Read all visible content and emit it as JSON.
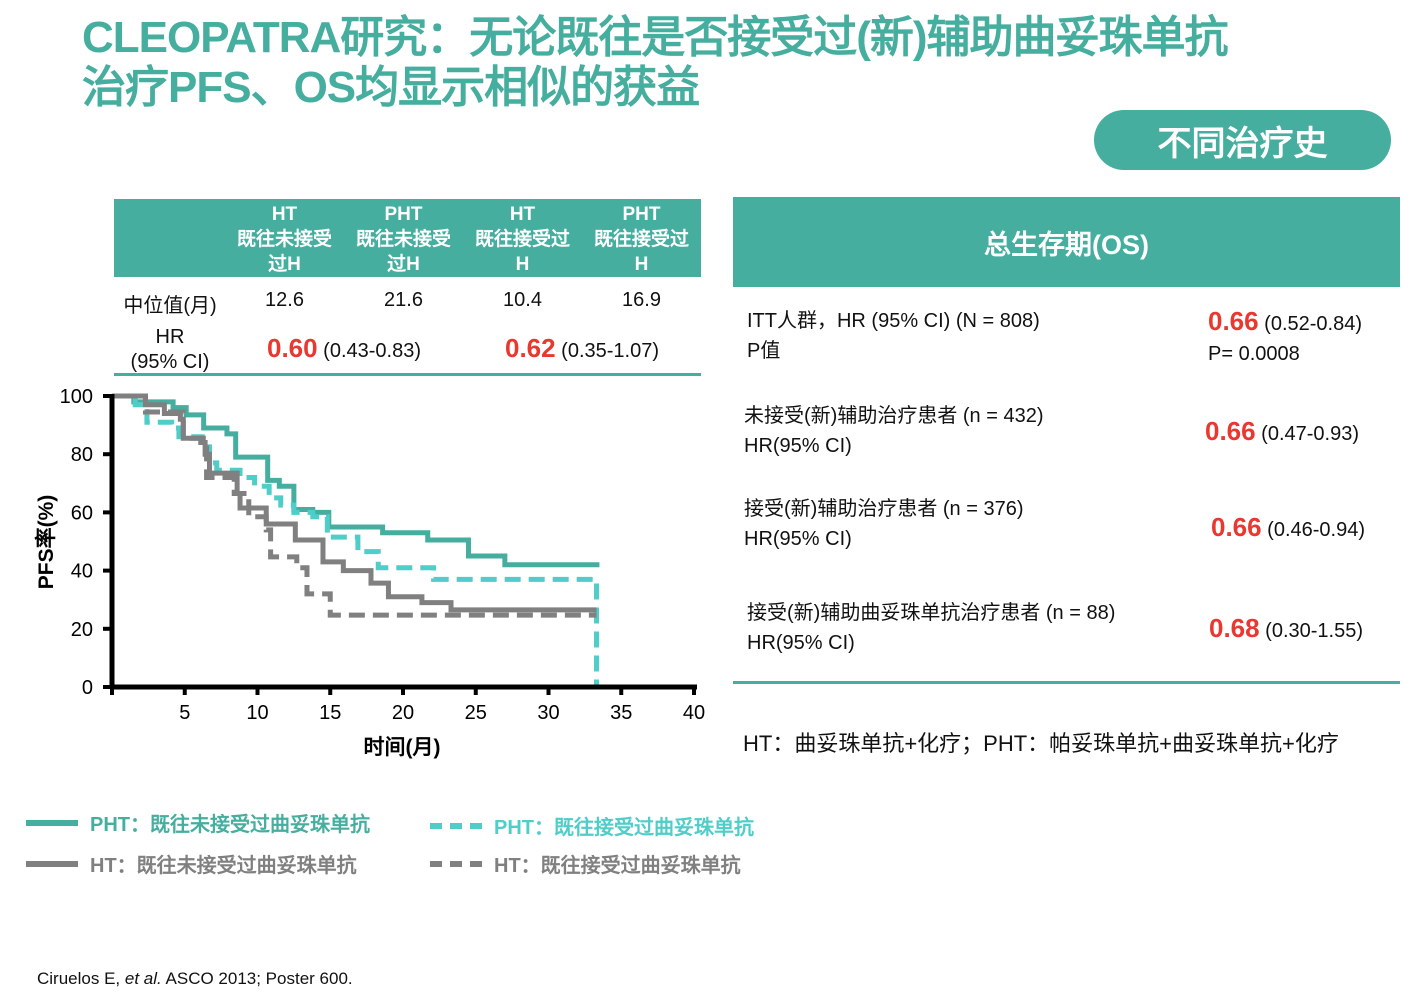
{
  "title": {
    "line1": "CLEOPATRA研究：无论既往是否接受过(新)辅助曲妥珠单抗",
    "line2": "治疗PFS、OS均显示相似的获益"
  },
  "badge": "不同治疗史",
  "pfs_table": {
    "columns": [
      {
        "l1": "HT",
        "l2": "既往未接受",
        "l3": "过H"
      },
      {
        "l1": "PHT",
        "l2": "既往未接受",
        "l3": "过H"
      },
      {
        "l1": "HT",
        "l2": "既往接受过",
        "l3": "H"
      },
      {
        "l1": "PHT",
        "l2": "既往接受过",
        "l3": "H"
      }
    ],
    "median_label": "中位值(月)",
    "medians": [
      "12.6",
      "21.6",
      "10.4",
      "16.9"
    ],
    "hr_label_1": "HR",
    "hr_label_2": "(95% CI)",
    "hr": [
      {
        "value": "0.60",
        "ci": "(0.43-0.83)"
      },
      {
        "value": "0.62",
        "ci": "(0.35-1.07)"
      }
    ]
  },
  "os_table": {
    "header": "总生存期(OS)",
    "rows": [
      {
        "l1": "ITT人群，HR (95% CI) (N = 808)",
        "l2": "P值",
        "value": "0.66",
        "ci": "(0.52-0.84)",
        "p": "P= 0.0008"
      },
      {
        "l1": "未接受(新)辅助治疗患者 (n = 432)",
        "l2": "HR(95% CI)",
        "value": "0.66",
        "ci": "(0.47-0.93)"
      },
      {
        "l1": "接受(新)辅助治疗患者 (n = 376)",
        "l2": "HR(95% CI)",
        "value": "0.66",
        "ci": "(0.46-0.94)"
      },
      {
        "l1": "接受(新)辅助曲妥珠单抗治疗患者 (n = 88)",
        "l2": "HR(95% CI)",
        "value": "0.68",
        "ci": "(0.30-1.55)"
      }
    ],
    "footnote": "HT：曲妥珠单抗+化疗；PHT：帕妥珠单抗+曲妥珠单抗+化疗"
  },
  "legend": [
    {
      "label": "PHT：既往未接受过曲妥珠单抗",
      "color": "#45ae9f",
      "dashed": false
    },
    {
      "label": "PHT：既往接受过曲妥珠单抗",
      "color": "#4fcdc9",
      "dashed": true
    },
    {
      "label": "HT：既往未接受过曲妥珠单抗",
      "color": "#808080",
      "dashed": false
    },
    {
      "label": "HT：既往接受过曲妥珠单抗",
      "color": "#808080",
      "dashed": true
    }
  ],
  "citation": {
    "pre": "Ciruelos E, ",
    "em": "et al.",
    "post": " ASCO 2013; Poster 600."
  },
  "chart_data": {
    "type": "line",
    "subtype": "kaplan-meier step",
    "xlabel": "时间(月)",
    "ylabel": "PFS率(%)",
    "xlim": [
      0,
      40
    ],
    "ylim": [
      0,
      100
    ],
    "xticks": [
      5,
      10,
      15,
      20,
      25,
      30,
      35,
      40
    ],
    "yticks": [
      0,
      20,
      40,
      60,
      80,
      100
    ],
    "grid": false,
    "legend_position": "bottom",
    "series": [
      {
        "name": "PHT：既往未接受过曲妥珠单抗",
        "color": "#45ae9f",
        "dashed": false,
        "points": [
          [
            0,
            100
          ],
          [
            1.5,
            98
          ],
          [
            4.2,
            96
          ],
          [
            5.1,
            93.5
          ],
          [
            6.3,
            89
          ],
          [
            7.9,
            87
          ],
          [
            8.5,
            79
          ],
          [
            10.7,
            71
          ],
          [
            11.5,
            69
          ],
          [
            12.5,
            61
          ],
          [
            13.8,
            60
          ],
          [
            14.9,
            55
          ],
          [
            18.6,
            53
          ],
          [
            21.7,
            50.5
          ],
          [
            24.5,
            45
          ],
          [
            27,
            42
          ],
          [
            33.5,
            42
          ]
        ]
      },
      {
        "name": "PHT：既往接受过曲妥珠单抗",
        "color": "#4fcdc9",
        "dashed": true,
        "points": [
          [
            0,
            100
          ],
          [
            1.6,
            97
          ],
          [
            2.4,
            91
          ],
          [
            4.1,
            89
          ],
          [
            4.6,
            86
          ],
          [
            6.2,
            82.5
          ],
          [
            6.7,
            77
          ],
          [
            7.2,
            74.5
          ],
          [
            8.8,
            72
          ],
          [
            9.8,
            69
          ],
          [
            10.8,
            65
          ],
          [
            11.6,
            62.5
          ],
          [
            12.5,
            60
          ],
          [
            13.8,
            58.5
          ],
          [
            14.8,
            51.5
          ],
          [
            16.9,
            46.5
          ],
          [
            18.3,
            41
          ],
          [
            22.1,
            37
          ],
          [
            33.3,
            37
          ],
          [
            33.3,
            0
          ]
        ]
      },
      {
        "name": "HT：既往未接受过曲妥珠单抗",
        "color": "#808080",
        "dashed": false,
        "points": [
          [
            0,
            100
          ],
          [
            2.3,
            97
          ],
          [
            3.6,
            94
          ],
          [
            4.7,
            92
          ],
          [
            4.9,
            85.5
          ],
          [
            6.1,
            84
          ],
          [
            6.4,
            80
          ],
          [
            6.7,
            73.5
          ],
          [
            8.6,
            66.5
          ],
          [
            8.8,
            61.5
          ],
          [
            10.6,
            56
          ],
          [
            12.6,
            50.5
          ],
          [
            14.5,
            43
          ],
          [
            15.9,
            40
          ],
          [
            17.8,
            35.7
          ],
          [
            19,
            31
          ],
          [
            21.3,
            29
          ],
          [
            23.3,
            26.5
          ],
          [
            33.3,
            26.5
          ]
        ]
      },
      {
        "name": "HT：既往接受过曲妥珠单抗",
        "color": "#808080",
        "dashed": true,
        "points": [
          [
            0,
            100
          ],
          [
            2.3,
            94.5
          ],
          [
            4.9,
            85.5
          ],
          [
            6.5,
            72
          ],
          [
            8.4,
            66.5
          ],
          [
            9.4,
            58.5
          ],
          [
            10.6,
            54
          ],
          [
            10.9,
            44.7
          ],
          [
            12.7,
            41
          ],
          [
            13.4,
            32
          ],
          [
            15,
            24.7
          ],
          [
            33.3,
            24.7
          ]
        ]
      }
    ]
  }
}
